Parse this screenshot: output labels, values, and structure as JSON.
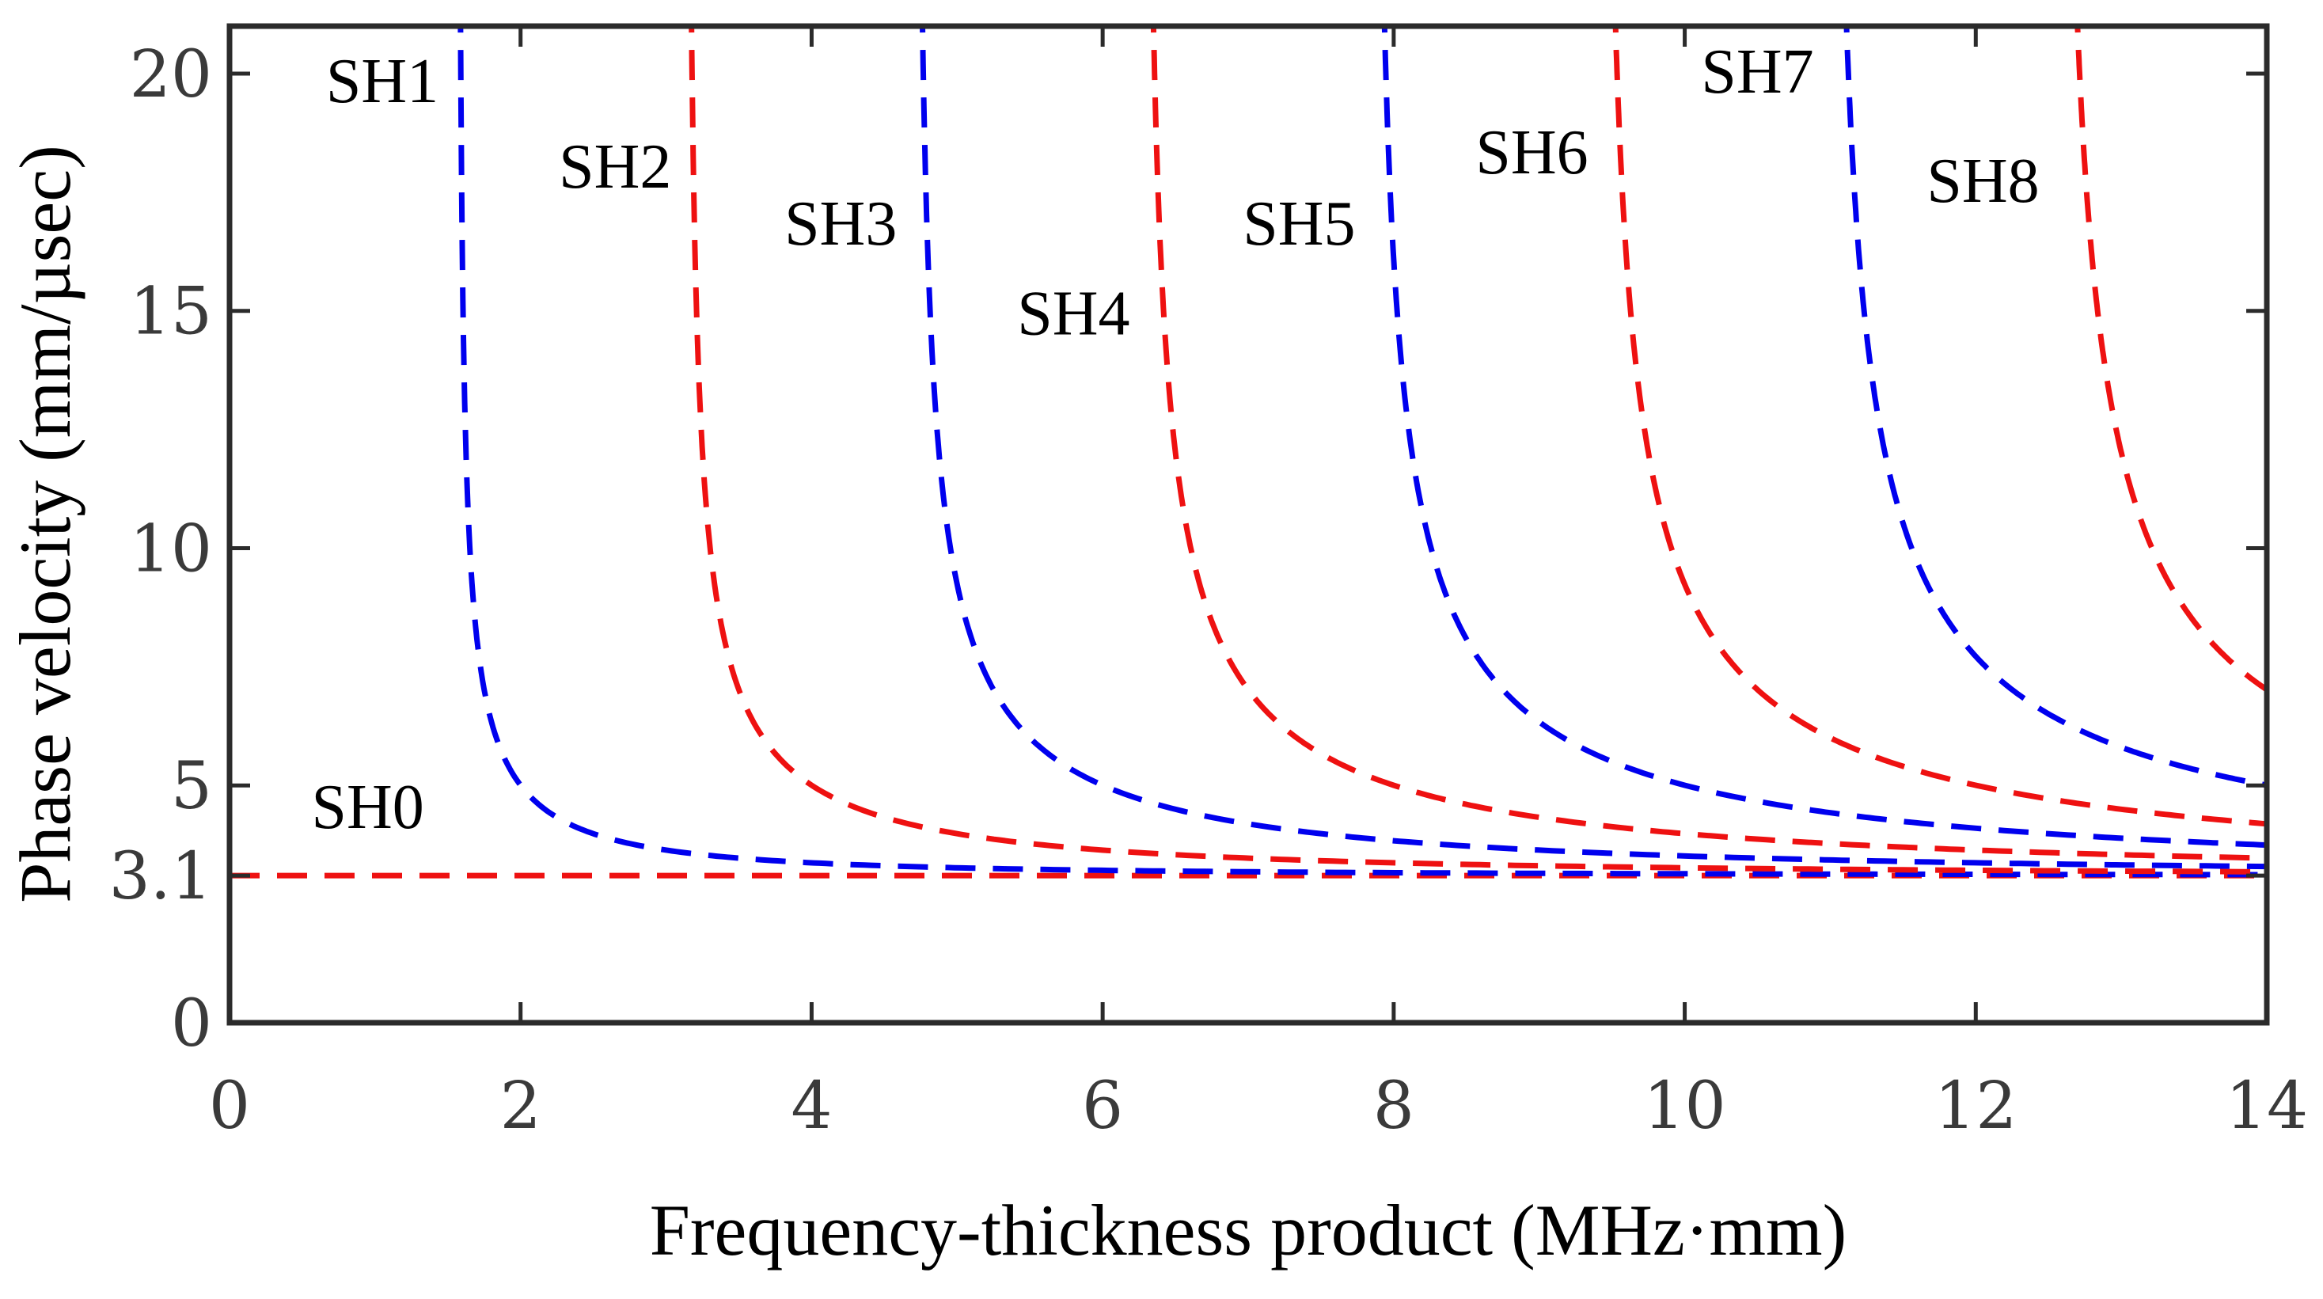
{
  "chart_data": {
    "type": "line",
    "title": "",
    "xlabel": "Frequency-thickness product (MHz·mm)",
    "ylabel": "Phase velocity (mm/µsec)",
    "xlim": [
      0,
      14
    ],
    "ylim": [
      0,
      21
    ],
    "xticks": [
      0,
      2,
      4,
      6,
      8,
      10,
      12,
      14
    ],
    "xtick_labels": [
      "0",
      "2",
      "4",
      "6",
      "8",
      "10",
      "12",
      "14"
    ],
    "yticks": [
      0,
      3.1,
      5,
      10,
      15,
      20
    ],
    "ytick_labels": [
      "0",
      "3.1",
      "5",
      "10",
      "15",
      "20"
    ],
    "bulk_shear_velocity": 3.1,
    "grid": false,
    "colors": {
      "odd_modes": "#0000ee",
      "even_modes": "#ee1111",
      "axes": "#2b2b2b"
    },
    "series": [
      {
        "name": "SH0",
        "label": "SH0",
        "color": "#ee1111",
        "style": "dashed",
        "cutoff": 0
      },
      {
        "name": "SH1",
        "label": "SH1",
        "color": "#0000ee",
        "style": "dashed",
        "cutoff": 1.57
      },
      {
        "name": "SH2",
        "label": "SH2",
        "color": "#ee1111",
        "style": "dashed",
        "cutoff": 3.14
      },
      {
        "name": "SH3",
        "label": "SH3",
        "color": "#0000ee",
        "style": "dashed",
        "cutoff": 4.71
      },
      {
        "name": "SH4",
        "label": "SH4",
        "color": "#ee1111",
        "style": "dashed",
        "cutoff": 6.28
      },
      {
        "name": "SH5",
        "label": "SH5",
        "color": "#0000ee",
        "style": "dashed",
        "cutoff": 7.85
      },
      {
        "name": "SH6",
        "label": "SH6",
        "color": "#ee1111",
        "style": "dashed",
        "cutoff": 9.42
      },
      {
        "name": "SH7",
        "label": "SH7",
        "color": "#0000ee",
        "style": "dashed",
        "cutoff": 10.99
      },
      {
        "name": "SH8",
        "label": "SH8",
        "color": "#ee1111",
        "style": "dashed",
        "cutoff": 12.56
      }
    ],
    "annotations": [
      {
        "text": "SH0",
        "x": 0.95,
        "y": 4.1
      },
      {
        "text": "SH1",
        "x": 1.05,
        "y": 19.4
      },
      {
        "text": "SH2",
        "x": 2.65,
        "y": 17.6
      },
      {
        "text": "SH3",
        "x": 4.2,
        "y": 16.4
      },
      {
        "text": "SH4",
        "x": 5.8,
        "y": 14.5
      },
      {
        "text": "SH5",
        "x": 7.35,
        "y": 16.4
      },
      {
        "text": "SH6",
        "x": 8.95,
        "y": 17.9
      },
      {
        "text": "SH7",
        "x": 10.5,
        "y": 19.6
      },
      {
        "text": "SH8",
        "x": 12.05,
        "y": 17.3
      }
    ]
  }
}
